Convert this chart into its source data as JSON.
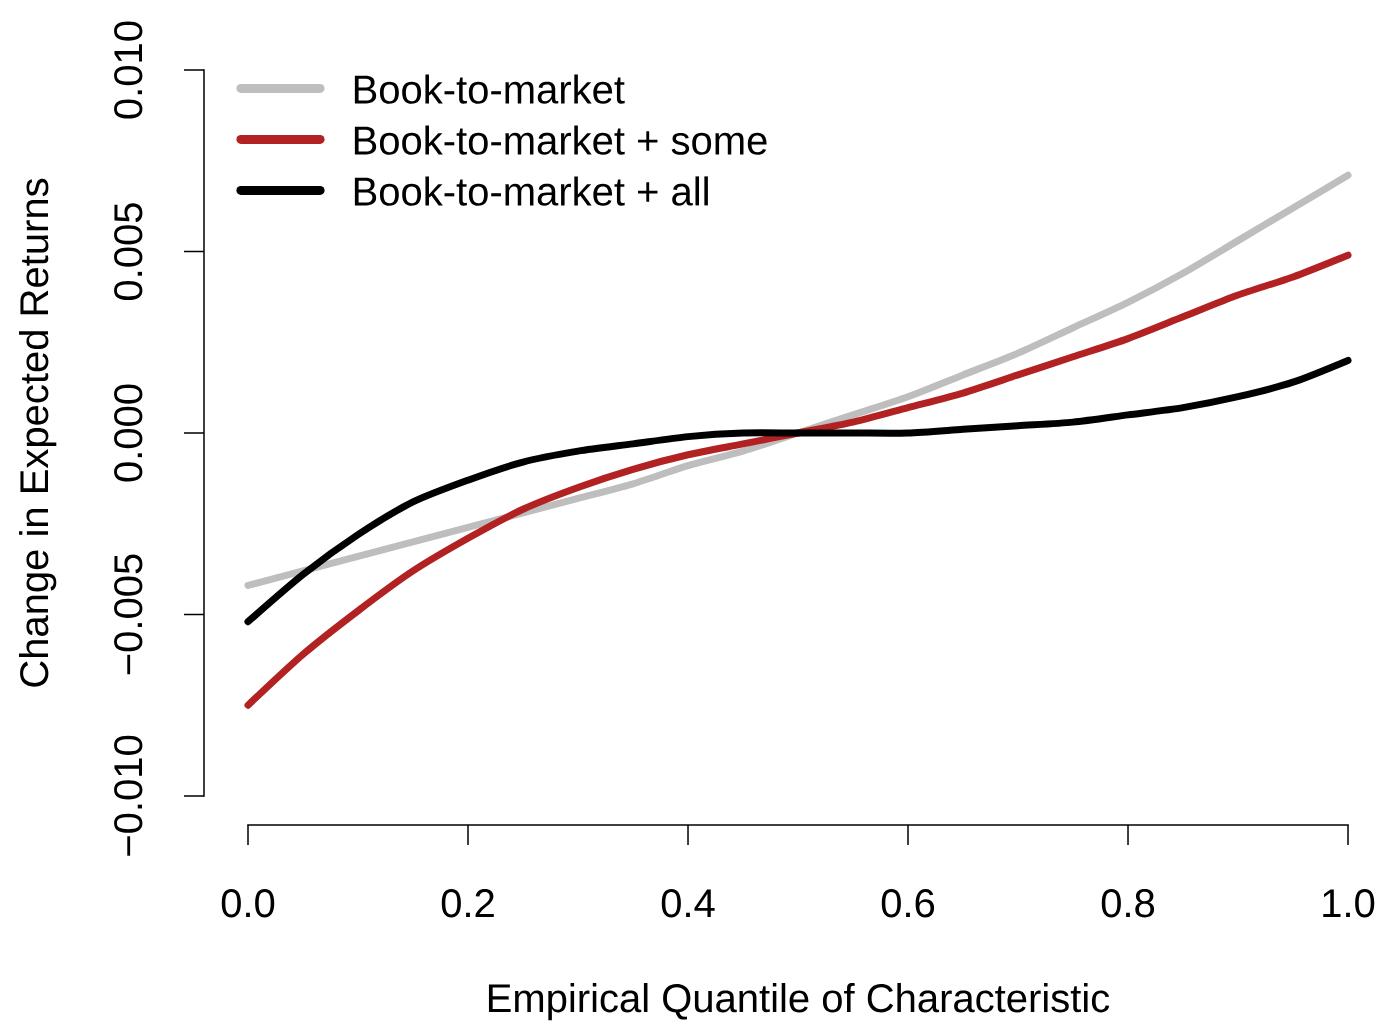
{
  "chart_data": {
    "type": "line",
    "xlabel": "Empirical Quantile of Characteristic",
    "ylabel": "Change in Expected Returns",
    "x": [
      0,
      0.05,
      0.1,
      0.15,
      0.2,
      0.25,
      0.3,
      0.35,
      0.4,
      0.45,
      0.5,
      0.55,
      0.6,
      0.65,
      0.7,
      0.75,
      0.8,
      0.85,
      0.9,
      0.95,
      1.0
    ],
    "series": [
      {
        "name": "Book-to-market",
        "color": "#bebebe",
        "values": [
          -0.0042,
          -0.0038,
          -0.0034,
          -0.003,
          -0.0026,
          -0.0022,
          -0.0018,
          -0.0014,
          -0.0009,
          -0.0005,
          0.0,
          0.0005,
          0.001,
          0.0016,
          0.0022,
          0.0029,
          0.0036,
          0.0044,
          0.0053,
          0.0062,
          0.0071
        ]
      },
      {
        "name": "Book-to-market + some",
        "color": "#b22222",
        "values": [
          -0.0075,
          -0.0061,
          -0.0049,
          -0.0038,
          -0.0029,
          -0.0021,
          -0.0015,
          -0.001,
          -0.0006,
          -0.0003,
          0.0,
          0.0003,
          0.0007,
          0.0011,
          0.0016,
          0.0021,
          0.0026,
          0.0032,
          0.0038,
          0.0043,
          0.0049
        ]
      },
      {
        "name": "Book-to-market + all",
        "color": "#000000",
        "values": [
          -0.0052,
          -0.0039,
          -0.0028,
          -0.0019,
          -0.0013,
          -0.0008,
          -0.0005,
          -0.0003,
          -0.0001,
          0.0,
          0.0,
          0.0,
          0.0,
          0.0001,
          0.0002,
          0.0003,
          0.0005,
          0.0007,
          0.001,
          0.0014,
          0.002
        ]
      }
    ],
    "xlim": [
      0,
      1
    ],
    "ylim": [
      -0.01,
      0.01
    ],
    "xticks": [
      {
        "value": 0,
        "label": "0.0"
      },
      0.2,
      0.4,
      0.6,
      0.8,
      {
        "value": 1,
        "label": "1.0"
      }
    ],
    "yticks": [
      {
        "value": -0.01,
        "label": "−0.010"
      },
      {
        "value": -0.005,
        "label": "−0.005"
      },
      {
        "value": 0,
        "label": "0.000"
      },
      {
        "value": 0.005,
        "label": "0.005"
      },
      {
        "value": 0.01,
        "label": "0.010"
      }
    ],
    "legend": "top left",
    "line_style": "solid"
  }
}
